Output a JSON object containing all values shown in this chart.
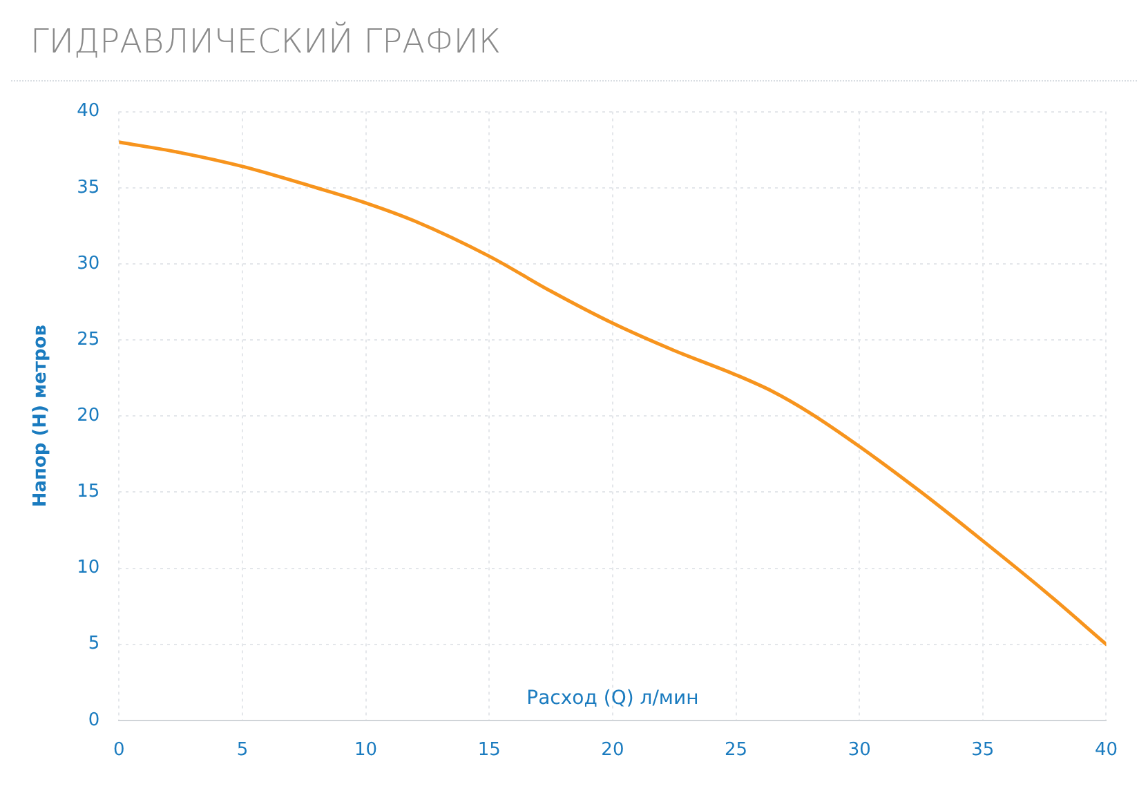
{
  "chart_data": {
    "type": "line",
    "title": "ГИДРАВЛИЧЕСКИЙ ГРАФИК",
    "xlabel": "Расход (Q) л/мин",
    "ylabel": "Напор (H) метров",
    "xlim": [
      0,
      40
    ],
    "xticks": [
      0,
      5,
      10,
      15,
      20,
      25,
      30,
      35,
      40
    ],
    "ylim": [
      0,
      40
    ],
    "yticks": [
      0,
      5,
      10,
      15,
      20,
      25,
      30,
      35,
      40
    ],
    "grid": true,
    "legend": false,
    "marker": "none",
    "line_style": "solid",
    "series": [
      {
        "color": "#f7941d",
        "x": [
          0,
          2.5,
          5,
          8,
          10,
          12,
          15,
          17.5,
          20,
          22.5,
          25,
          26.5,
          28,
          30,
          32.5,
          35,
          37.5,
          40
        ],
        "values": [
          38,
          37.3,
          36.4,
          35,
          34,
          32.8,
          30.5,
          28.2,
          26.1,
          24.3,
          22.7,
          21.6,
          20.2,
          18,
          15,
          11.8,
          8.5,
          5
        ]
      }
    ]
  }
}
